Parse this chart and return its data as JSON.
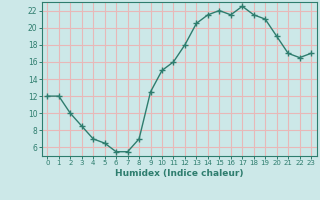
{
  "x": [
    0,
    1,
    2,
    3,
    4,
    5,
    6,
    7,
    8,
    9,
    10,
    11,
    12,
    13,
    14,
    15,
    16,
    17,
    18,
    19,
    20,
    21,
    22,
    23
  ],
  "y": [
    12,
    12,
    10,
    8.5,
    7,
    6.5,
    5.5,
    5.5,
    7,
    12.5,
    15,
    16,
    18,
    20.5,
    21.5,
    22,
    21.5,
    22.5,
    21.5,
    21,
    19,
    17,
    16.5,
    17
  ],
  "xlabel": "Humidex (Indice chaleur)",
  "ylabel": "",
  "xlim": [
    -0.5,
    23.5
  ],
  "ylim": [
    5,
    23
  ],
  "yticks": [
    6,
    8,
    10,
    12,
    14,
    16,
    18,
    20,
    22
  ],
  "xticks": [
    0,
    1,
    2,
    3,
    4,
    5,
    6,
    7,
    8,
    9,
    10,
    11,
    12,
    13,
    14,
    15,
    16,
    17,
    18,
    19,
    20,
    21,
    22,
    23
  ],
  "line_color": "#2e7d6e",
  "marker": "+",
  "marker_size": 4.0,
  "bg_color": "#cce8e8",
  "grid_color": "#e8b8b8",
  "tick_label_color": "#2e7d6e",
  "xlabel_color": "#2e7d6e",
  "spine_color": "#2e7d6e"
}
